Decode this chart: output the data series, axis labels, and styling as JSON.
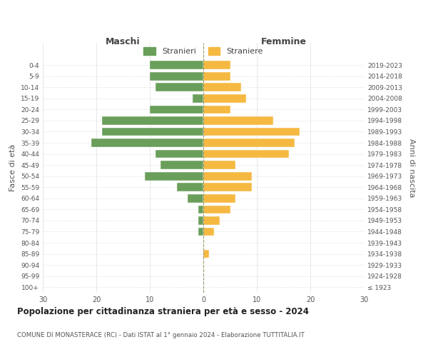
{
  "age_groups": [
    "100+",
    "95-99",
    "90-94",
    "85-89",
    "80-84",
    "75-79",
    "70-74",
    "65-69",
    "60-64",
    "55-59",
    "50-54",
    "45-49",
    "40-44",
    "35-39",
    "30-34",
    "25-29",
    "20-24",
    "15-19",
    "10-14",
    "5-9",
    "0-4"
  ],
  "birth_years": [
    "≤ 1923",
    "1924-1928",
    "1929-1933",
    "1934-1938",
    "1939-1943",
    "1944-1948",
    "1949-1953",
    "1954-1958",
    "1959-1963",
    "1964-1968",
    "1969-1973",
    "1974-1978",
    "1979-1983",
    "1984-1988",
    "1989-1993",
    "1994-1998",
    "1999-2003",
    "2004-2008",
    "2009-2013",
    "2014-2018",
    "2019-2023"
  ],
  "males": [
    0,
    0,
    0,
    0,
    0,
    1,
    1,
    1,
    3,
    5,
    11,
    8,
    9,
    21,
    19,
    19,
    10,
    2,
    9,
    10,
    10
  ],
  "females": [
    0,
    0,
    0,
    1,
    0,
    2,
    3,
    5,
    6,
    9,
    9,
    6,
    16,
    17,
    18,
    13,
    5,
    8,
    7,
    5,
    5
  ],
  "male_color": "#6a9f5b",
  "female_color": "#f5b942",
  "male_label": "Stranieri",
  "female_label": "Straniere",
  "title": "Popolazione per cittadinanza straniera per età e sesso - 2024",
  "subtitle": "COMUNE DI MONASTERACE (RC) - Dati ISTAT al 1° gennaio 2024 - Elaborazione TUTTITALIA.IT",
  "xlabel_left": "Maschi",
  "xlabel_right": "Femmine",
  "ylabel_left": "Fasce di età",
  "ylabel_right": "Anni di nascita",
  "xlim": 30,
  "background_color": "#ffffff",
  "grid_color": "#dddddd"
}
